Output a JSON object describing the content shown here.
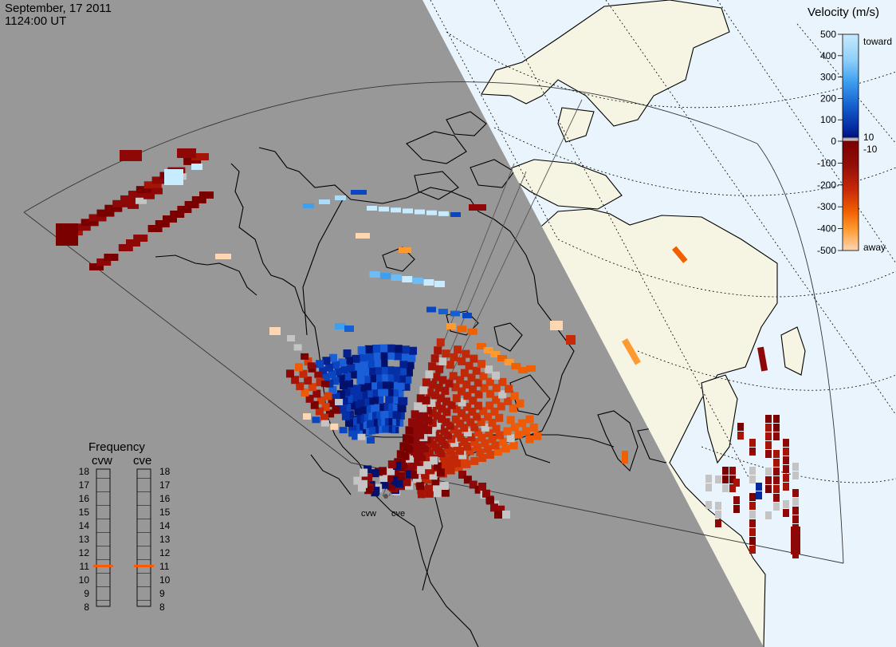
{
  "header": {
    "date": "September, 17 2011",
    "time": "1124:00 UT"
  },
  "velocity_scale": {
    "title": "Velocity (m/s)",
    "toward_label": "toward",
    "away_label": "away",
    "ticks": [
      "500",
      "400",
      "300",
      "200",
      "100",
      "0",
      "-100",
      "-200",
      "-300",
      "-400",
      "-500"
    ],
    "minor_pos": "10",
    "minor_neg": "-10"
  },
  "frequency_panel": {
    "title": "Frequency",
    "radars": [
      {
        "name": "cvw",
        "selected": "11"
      },
      {
        "name": "cve",
        "selected": "11"
      }
    ],
    "levels": [
      "18",
      "17",
      "16",
      "15",
      "14",
      "13",
      "12",
      "11",
      "10",
      "9",
      "8"
    ]
  },
  "radar_sites": [
    {
      "id": "cvw",
      "label": "cvw"
    },
    {
      "id": "cve",
      "label": "cve"
    }
  ],
  "colors": {
    "night": "#989898",
    "land_day": "#f6f4e2",
    "ocean_day": "#e9f4fc",
    "ground_scatter": "#c4c4c4",
    "selected_frequency": "#ff5a00"
  }
}
